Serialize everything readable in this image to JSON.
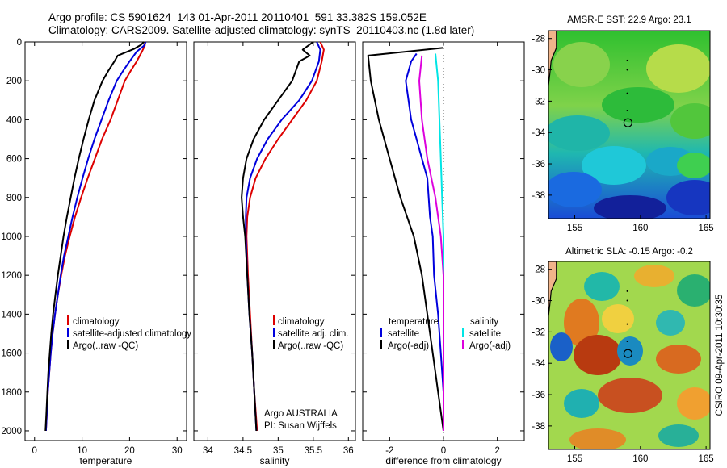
{
  "title": {
    "line1": "Argo profile: CS 5901624_143 01-Apr-2011 20110401_591 33.382S 159.052E",
    "line2": "Climatology: CARS2009. Satellite-adjusted climatology: synTS_20110403.nc (1.8d later)"
  },
  "credit": {
    "line1": "Argo AUSTRALIA",
    "line2": "PI: Susan Wijffels"
  },
  "side_text": "CSIRO 09-Apr-2011 10:30:35",
  "colors": {
    "red": "#dd0000",
    "blue": "#0000dd",
    "black": "#000000",
    "cyan": "#00e5e5",
    "magenta": "#dd00dd"
  },
  "chart_data": [
    {
      "type": "line",
      "id": "temperature",
      "xlabel": "temperature",
      "xlim": [
        -2,
        32
      ],
      "ylim": [
        0,
        2050
      ],
      "y_reversed": true,
      "xticks": [
        0,
        10,
        20,
        30
      ],
      "yticks": [
        0,
        200,
        400,
        600,
        800,
        1000,
        1200,
        1400,
        1600,
        1800,
        2000
      ],
      "legend": [
        "climatology",
        "satellite-adjusted climatology",
        "Argo(..raw -QC)"
      ],
      "series": [
        {
          "name": "climatology",
          "color": "red",
          "points": [
            [
              23.3,
              0
            ],
            [
              23.2,
              20
            ],
            [
              22.6,
              50
            ],
            [
              21.5,
              100
            ],
            [
              20.2,
              150
            ],
            [
              19.0,
              200
            ],
            [
              17.5,
              300
            ],
            [
              16.0,
              400
            ],
            [
              14.2,
              500
            ],
            [
              12.7,
              600
            ],
            [
              11.2,
              700
            ],
            [
              9.8,
              800
            ],
            [
              8.5,
              900
            ],
            [
              7.4,
              1000
            ],
            [
              6.4,
              1100
            ],
            [
              5.6,
              1200
            ],
            [
              4.9,
              1300
            ],
            [
              4.3,
              1400
            ],
            [
              3.8,
              1500
            ],
            [
              3.4,
              1600
            ],
            [
              3.1,
              1700
            ],
            [
              2.8,
              1800
            ],
            [
              2.6,
              1900
            ],
            [
              2.4,
              2000
            ]
          ]
        },
        {
          "name": "satellite-adjusted climatology",
          "color": "blue",
          "points": [
            [
              23.4,
              0
            ],
            [
              23.0,
              20
            ],
            [
              21.5,
              50
            ],
            [
              20.0,
              100
            ],
            [
              18.6,
              150
            ],
            [
              17.3,
              200
            ],
            [
              15.6,
              300
            ],
            [
              14.1,
              400
            ],
            [
              12.6,
              500
            ],
            [
              11.3,
              600
            ],
            [
              10.1,
              700
            ],
            [
              9.0,
              800
            ],
            [
              8.0,
              900
            ],
            [
              7.1,
              1000
            ],
            [
              6.2,
              1100
            ],
            [
              5.5,
              1200
            ],
            [
              4.9,
              1300
            ],
            [
              4.3,
              1400
            ],
            [
              3.8,
              1500
            ],
            [
              3.4,
              1600
            ],
            [
              3.1,
              1700
            ],
            [
              2.8,
              1800
            ],
            [
              2.6,
              1900
            ],
            [
              2.4,
              2000
            ]
          ]
        },
        {
          "name": "Argo(..raw -QC)",
          "color": "black",
          "points": [
            [
              23.0,
              0
            ],
            [
              22.4,
              15
            ],
            [
              21.0,
              35
            ],
            [
              19.0,
              55
            ],
            [
              17.5,
              70
            ],
            [
              16.8,
              100
            ],
            [
              15.5,
              150
            ],
            [
              14.3,
              200
            ],
            [
              12.6,
              300
            ],
            [
              11.4,
              400
            ],
            [
              10.3,
              500
            ],
            [
              9.3,
              600
            ],
            [
              8.4,
              700
            ],
            [
              7.6,
              800
            ],
            [
              6.8,
              900
            ],
            [
              6.1,
              1000
            ],
            [
              5.5,
              1100
            ],
            [
              4.9,
              1200
            ],
            [
              4.4,
              1300
            ],
            [
              3.9,
              1400
            ],
            [
              3.5,
              1500
            ],
            [
              3.2,
              1600
            ],
            [
              2.9,
              1700
            ],
            [
              2.7,
              1800
            ],
            [
              2.5,
              1900
            ],
            [
              2.3,
              2000
            ]
          ]
        }
      ]
    },
    {
      "type": "line",
      "id": "salinity",
      "xlabel": "salinity",
      "xlim": [
        33.8,
        36.1
      ],
      "ylim": [
        0,
        2050
      ],
      "y_reversed": true,
      "xticks": [
        34,
        34.5,
        35,
        35.5,
        36
      ],
      "legend": [
        "climatology",
        "satellite adj. clim.",
        "Argo(..raw -QC)"
      ],
      "series": [
        {
          "name": "climatology",
          "color": "red",
          "points": [
            [
              35.6,
              0
            ],
            [
              35.65,
              40
            ],
            [
              35.62,
              100
            ],
            [
              35.55,
              200
            ],
            [
              35.4,
              300
            ],
            [
              35.2,
              400
            ],
            [
              35.0,
              500
            ],
            [
              34.82,
              600
            ],
            [
              34.68,
              700
            ],
            [
              34.6,
              800
            ],
            [
              34.56,
              900
            ],
            [
              34.55,
              1000
            ],
            [
              34.57,
              1200
            ],
            [
              34.6,
              1400
            ],
            [
              34.63,
              1600
            ],
            [
              34.66,
              1800
            ],
            [
              34.7,
              2000
            ]
          ]
        },
        {
          "name": "satellite adj. clim.",
          "color": "blue",
          "points": [
            [
              35.55,
              0
            ],
            [
              35.6,
              40
            ],
            [
              35.58,
              100
            ],
            [
              35.48,
              200
            ],
            [
              35.3,
              300
            ],
            [
              35.05,
              400
            ],
            [
              34.85,
              500
            ],
            [
              34.7,
              600
            ],
            [
              34.6,
              700
            ],
            [
              34.55,
              800
            ],
            [
              34.54,
              900
            ],
            [
              34.54,
              1000
            ],
            [
              34.56,
              1200
            ],
            [
              34.59,
              1400
            ],
            [
              34.63,
              1600
            ],
            [
              34.66,
              1800
            ],
            [
              34.69,
              2000
            ]
          ]
        },
        {
          "name": "Argo(..raw -QC)",
          "color": "black",
          "points": [
            [
              35.5,
              0
            ],
            [
              35.35,
              40
            ],
            [
              35.45,
              70
            ],
            [
              35.3,
              100
            ],
            [
              35.2,
              200
            ],
            [
              35.0,
              300
            ],
            [
              34.8,
              400
            ],
            [
              34.65,
              500
            ],
            [
              34.55,
              600
            ],
            [
              34.5,
              700
            ],
            [
              34.48,
              800
            ],
            [
              34.5,
              900
            ],
            [
              34.53,
              1000
            ],
            [
              34.56,
              1200
            ],
            [
              34.59,
              1400
            ],
            [
              34.63,
              1600
            ],
            [
              34.66,
              1800
            ],
            [
              34.69,
              2000
            ]
          ]
        }
      ]
    },
    {
      "type": "line",
      "id": "difference",
      "xlabel": "difference from climatology",
      "xlim": [
        -3,
        3
      ],
      "ylim": [
        0,
        2050
      ],
      "y_reversed": true,
      "xticks": [
        -2,
        0,
        2
      ],
      "legend_headers": [
        "temperature",
        "salinity"
      ],
      "legend": [
        "satellite",
        "Argo(-adj)",
        "satellite",
        "Argo(-adj)"
      ],
      "series": [
        {
          "name": "temperature satellite",
          "color": "blue",
          "points": [
            [
              -1.0,
              60
            ],
            [
              -1.2,
              100
            ],
            [
              -1.4,
              200
            ],
            [
              -1.3,
              300
            ],
            [
              -1.2,
              400
            ],
            [
              -1.0,
              500
            ],
            [
              -0.8,
              600
            ],
            [
              -0.6,
              700
            ],
            [
              -0.5,
              900
            ],
            [
              -0.4,
              1000
            ],
            [
              -0.35,
              1200
            ],
            [
              -0.2,
              1400
            ],
            [
              -0.1,
              1600
            ],
            [
              0.0,
              1800
            ],
            [
              0.0,
              2000
            ]
          ]
        },
        {
          "name": "temperature Argo(-adj)",
          "color": "black",
          "points": [
            [
              0.0,
              30
            ],
            [
              -2.8,
              70
            ],
            [
              -2.7,
              200
            ],
            [
              -2.4,
              400
            ],
            [
              -2.0,
              600
            ],
            [
              -1.6,
              800
            ],
            [
              -1.1,
              1000
            ],
            [
              -0.8,
              1200
            ],
            [
              -0.6,
              1400
            ],
            [
              -0.4,
              1600
            ],
            [
              -0.2,
              1800
            ],
            [
              0.0,
              2000
            ]
          ]
        },
        {
          "name": "salinity satellite",
          "color": "cyan",
          "points": [
            [
              -0.3,
              60
            ],
            [
              -0.2,
              200
            ],
            [
              -0.15,
              400
            ],
            [
              -0.1,
              600
            ],
            [
              -0.05,
              800
            ],
            [
              0.0,
              1000
            ],
            [
              0.0,
              1500
            ],
            [
              0.0,
              2000
            ]
          ]
        },
        {
          "name": "salinity Argo(-adj)",
          "color": "magenta",
          "points": [
            [
              -0.8,
              70
            ],
            [
              -0.9,
              200
            ],
            [
              -0.8,
              400
            ],
            [
              -0.6,
              600
            ],
            [
              -0.3,
              800
            ],
            [
              -0.1,
              1000
            ],
            [
              0.0,
              1200
            ],
            [
              0.0,
              1500
            ],
            [
              0.0,
              2000
            ]
          ]
        }
      ]
    },
    {
      "type": "heatmap",
      "id": "sst_map",
      "title": "AMSR-E SST: 22.9 Argo: 23.1",
      "xlim": [
        153,
        165.3
      ],
      "ylim": [
        -39.5,
        -27.5
      ],
      "xticks": [
        155,
        160,
        165
      ],
      "yticks": [
        -28,
        -30,
        -32,
        -34,
        -36,
        -38
      ],
      "argo_position": [
        159.05,
        -33.38
      ]
    },
    {
      "type": "heatmap",
      "id": "sla_map",
      "title": "Altimetric SLA: -0.15 Argo: -0.2",
      "xlim": [
        153,
        165.3
      ],
      "ylim": [
        -39.5,
        -27.5
      ],
      "xticks": [
        155,
        160,
        165
      ],
      "yticks": [
        -28,
        -30,
        -32,
        -34,
        -36,
        -38
      ],
      "argo_position": [
        159.05,
        -33.38
      ]
    }
  ]
}
